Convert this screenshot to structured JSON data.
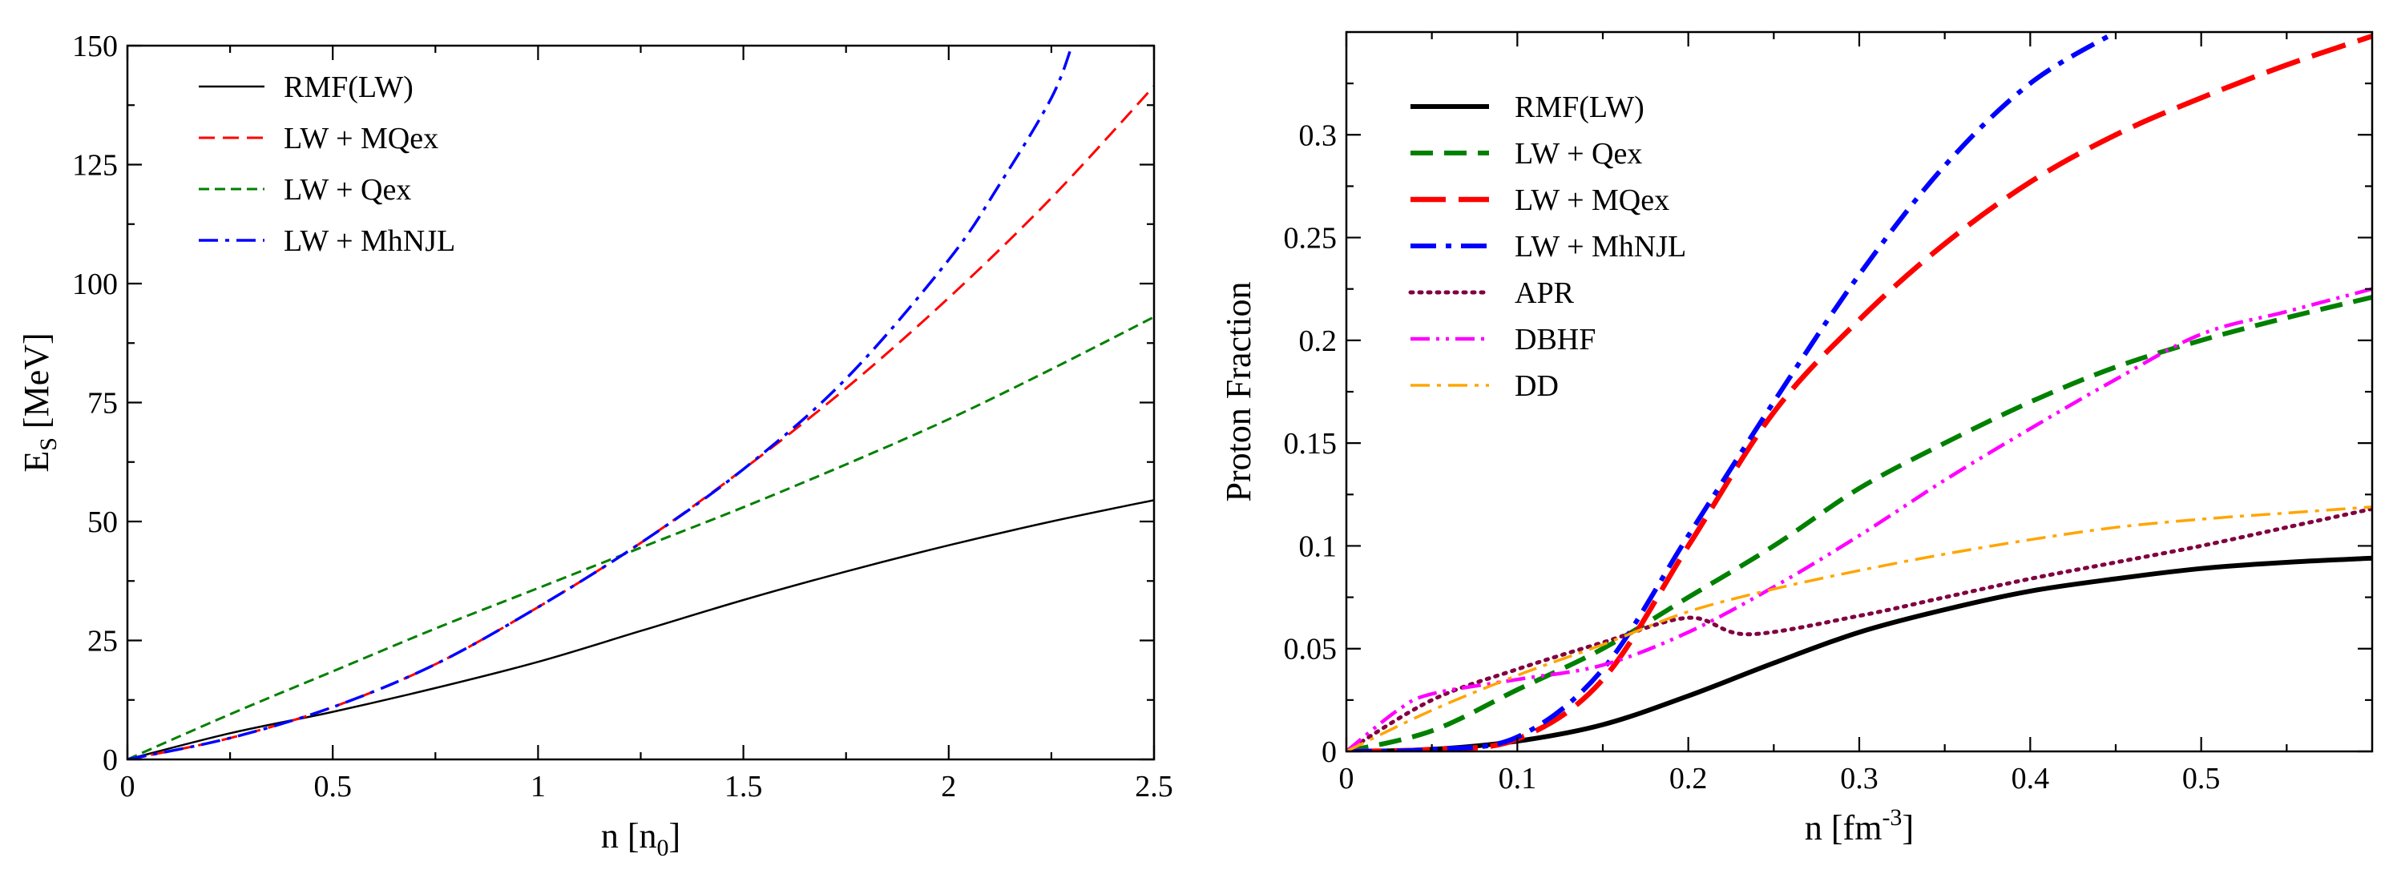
{
  "chart_data": [
    {
      "type": "line",
      "xlabel": "n [n",
      "xlabel_sub": "0",
      "xlabel_end": "]",
      "ylabel": "E",
      "ylabel_sub": "S",
      "ylabel_end": " [MeV]",
      "xlim": [
        0,
        2.5
      ],
      "ylim": [
        0,
        150
      ],
      "xticks": [
        0,
        0.5,
        1,
        1.5,
        2,
        2.5
      ],
      "xtick_labels": [
        "0",
        "0.5",
        "1",
        "1.5",
        "2",
        "2.5"
      ],
      "yticks": [
        0,
        25,
        50,
        75,
        100,
        125,
        150
      ],
      "ytick_labels": [
        "0",
        "25",
        "50",
        "75",
        "100",
        "125",
        "150"
      ],
      "legend_position": "top-left",
      "series": [
        {
          "name": "RMF(LW)",
          "color": "#000000",
          "style": "solid",
          "x": [
            0,
            0.25,
            0.5,
            0.75,
            1.0,
            1.25,
            1.5,
            1.75,
            2.0,
            2.25,
            2.5
          ],
          "y": [
            0,
            5.5,
            10,
            15,
            20.5,
            27,
            33.5,
            39.5,
            45,
            50,
            54.5
          ]
        },
        {
          "name": "LW + MQex",
          "color": "#ff0000",
          "style": "dash",
          "x": [
            0,
            0.25,
            0.5,
            0.75,
            1.0,
            1.25,
            1.5,
            1.75,
            2.0,
            2.25,
            2.5
          ],
          "y": [
            0,
            4.5,
            11,
            20,
            32,
            45.5,
            61,
            78,
            97,
            118,
            141.5
          ]
        },
        {
          "name": "LW + Qex",
          "color": "#008000",
          "style": "shortdash",
          "x": [
            0,
            0.25,
            0.5,
            0.75,
            1.0,
            1.25,
            1.5,
            1.75,
            2.0,
            2.25,
            2.5
          ],
          "y": [
            0,
            9.5,
            18.5,
            27.5,
            36,
            44.5,
            53,
            62,
            71.5,
            82,
            93
          ]
        },
        {
          "name": "LW + MhNJL",
          "color": "#0000ff",
          "style": "dashdot",
          "x": [
            0,
            0.25,
            0.5,
            0.75,
            1.0,
            1.25,
            1.5,
            1.75,
            2.0,
            2.125,
            2.25,
            2.3
          ],
          "y": [
            0,
            4.5,
            11,
            20,
            32,
            45.5,
            61,
            80,
            105,
            121,
            139,
            150
          ]
        }
      ]
    },
    {
      "type": "line",
      "xlabel": "n [fm",
      "xlabel_sup": "-3",
      "xlabel_end": "]",
      "ylabel": "Proton Fraction",
      "xlim": [
        0,
        0.6
      ],
      "ylim": [
        0,
        0.35
      ],
      "xticks": [
        0,
        0.1,
        0.2,
        0.3,
        0.4,
        0.5
      ],
      "xtick_labels": [
        "0",
        "0.1",
        "0.2",
        "0.3",
        "0.4",
        "0.5"
      ],
      "yticks": [
        0,
        0.05,
        0.1,
        0.15,
        0.2,
        0.25,
        0.3
      ],
      "ytick_labels": [
        "0",
        "0.05",
        "0.1",
        "0.15",
        "0.2",
        "0.25",
        "0.3"
      ],
      "legend_position": "top-left",
      "series": [
        {
          "name": "RMF(LW)",
          "color": "#000000",
          "style": "solid-thick",
          "x": [
            0,
            0.05,
            0.1,
            0.15,
            0.2,
            0.25,
            0.3,
            0.35,
            0.4,
            0.45,
            0.5,
            0.55,
            0.6
          ],
          "y": [
            0,
            0.001,
            0.005,
            0.013,
            0.027,
            0.043,
            0.058,
            0.069,
            0.078,
            0.084,
            0.089,
            0.092,
            0.094
          ]
        },
        {
          "name": "LW + Qex",
          "color": "#008000",
          "style": "dash-thick",
          "x": [
            0,
            0.05,
            0.1,
            0.15,
            0.2,
            0.25,
            0.3,
            0.35,
            0.4,
            0.45,
            0.5,
            0.55,
            0.6
          ],
          "y": [
            0,
            0.01,
            0.03,
            0.05,
            0.075,
            0.1,
            0.128,
            0.15,
            0.17,
            0.187,
            0.2,
            0.211,
            0.221
          ]
        },
        {
          "name": "LW + MQex",
          "color": "#ff0000",
          "style": "longdash-thick",
          "x": [
            0,
            0.05,
            0.1,
            0.15,
            0.2,
            0.25,
            0.3,
            0.35,
            0.4,
            0.45,
            0.5,
            0.55,
            0.6
          ],
          "y": [
            0,
            0.001,
            0.006,
            0.035,
            0.1,
            0.165,
            0.21,
            0.247,
            0.277,
            0.3,
            0.318,
            0.334,
            0.348
          ]
        },
        {
          "name": "LW + MhNJL",
          "color": "#0000ff",
          "style": "dashdot-thick",
          "x": [
            0,
            0.05,
            0.1,
            0.15,
            0.2,
            0.25,
            0.3,
            0.35,
            0.4,
            0.45
          ],
          "y": [
            0,
            0.001,
            0.007,
            0.04,
            0.105,
            0.17,
            0.232,
            0.285,
            0.325,
            0.35
          ]
        },
        {
          "name": "APR",
          "color": "#800040",
          "style": "dotted",
          "x": [
            0,
            0.05,
            0.1,
            0.15,
            0.2,
            0.235,
            0.3,
            0.35,
            0.4,
            0.45,
            0.5,
            0.55,
            0.6
          ],
          "y": [
            0,
            0.025,
            0.04,
            0.053,
            0.065,
            0.057,
            0.066,
            0.075,
            0.084,
            0.092,
            0.1,
            0.109,
            0.118
          ]
        },
        {
          "name": "DBHF",
          "color": "#ff00ff",
          "style": "dashdotdot",
          "x": [
            0,
            0.03,
            0.05,
            0.1,
            0.15,
            0.2,
            0.25,
            0.3,
            0.35,
            0.4,
            0.45,
            0.5,
            0.55,
            0.6
          ],
          "y": [
            0,
            0.02,
            0.028,
            0.035,
            0.042,
            0.058,
            0.08,
            0.105,
            0.132,
            0.157,
            0.181,
            0.203,
            0.214,
            0.225
          ]
        },
        {
          "name": "DD",
          "color": "#ffa500",
          "style": "dashdot",
          "x": [
            0,
            0.05,
            0.1,
            0.15,
            0.2,
            0.25,
            0.3,
            0.35,
            0.4,
            0.45,
            0.5,
            0.55,
            0.6
          ],
          "y": [
            0,
            0.02,
            0.037,
            0.052,
            0.068,
            0.079,
            0.088,
            0.096,
            0.103,
            0.109,
            0.113,
            0.116,
            0.119
          ]
        }
      ]
    }
  ]
}
